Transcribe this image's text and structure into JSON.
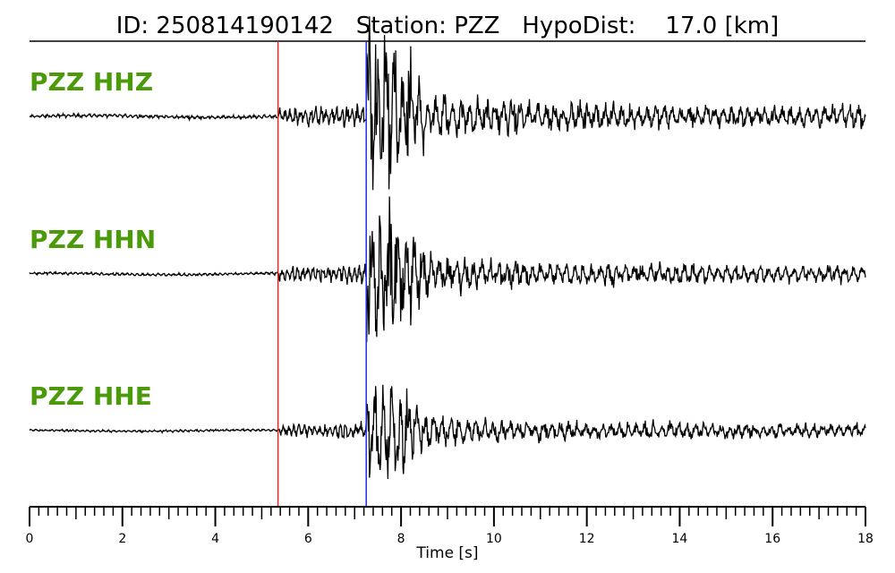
{
  "chart_data": {
    "type": "line",
    "title": "ID: 250814190142   Station: PZZ   HypoDist:    17.0 [km]",
    "xlabel": "Time [s]",
    "xlim": [
      0,
      18
    ],
    "xticks": [
      "0",
      "2",
      "4",
      "6",
      "8",
      "10",
      "12",
      "14",
      "16",
      "18"
    ],
    "minor_tick_step": 0.2,
    "grid": false,
    "picks": [
      {
        "phase": "P",
        "time": 5.35,
        "color": "#e8262a"
      },
      {
        "phase": "S",
        "time": 7.25,
        "color": "#1f2ee8"
      }
    ],
    "series": [
      {
        "name": "PZZ HHZ",
        "label_color": "#4a9a0a",
        "relative_amplitude": 1.0
      },
      {
        "name": "PZZ HHN",
        "label_color": "#4a9a0a",
        "relative_amplitude": 0.95
      },
      {
        "name": "PZZ HHE",
        "label_color": "#4a9a0a",
        "relative_amplitude": 0.9
      }
    ]
  }
}
